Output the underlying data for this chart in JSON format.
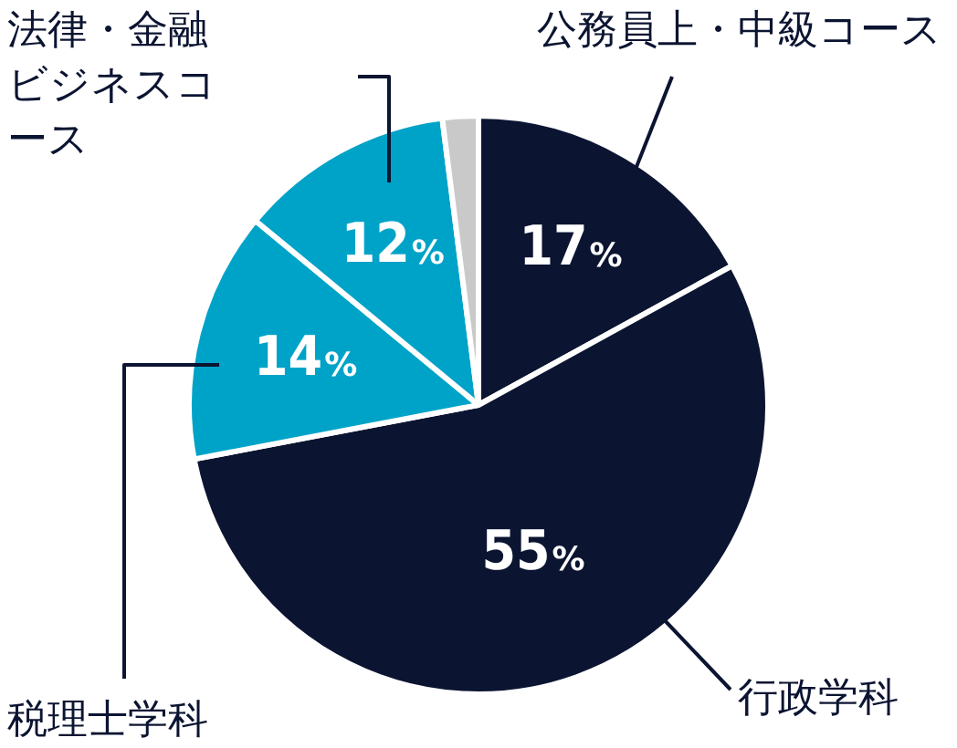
{
  "chart_data": {
    "type": "pie",
    "categories": [
      "公務員上・中級コース",
      "行政学科",
      "税理士学科",
      "法律・金融ビジネスコース",
      null
    ],
    "values": [
      17,
      55,
      14,
      12,
      2
    ],
    "colors": [
      "#0b1431",
      "#0b1431",
      "#00a3c8",
      "#00a3c8",
      "#c9c9c9"
    ],
    "value_labels": [
      "17%",
      "55%",
      "14%",
      "12%",
      null
    ],
    "legend": false
  }
}
